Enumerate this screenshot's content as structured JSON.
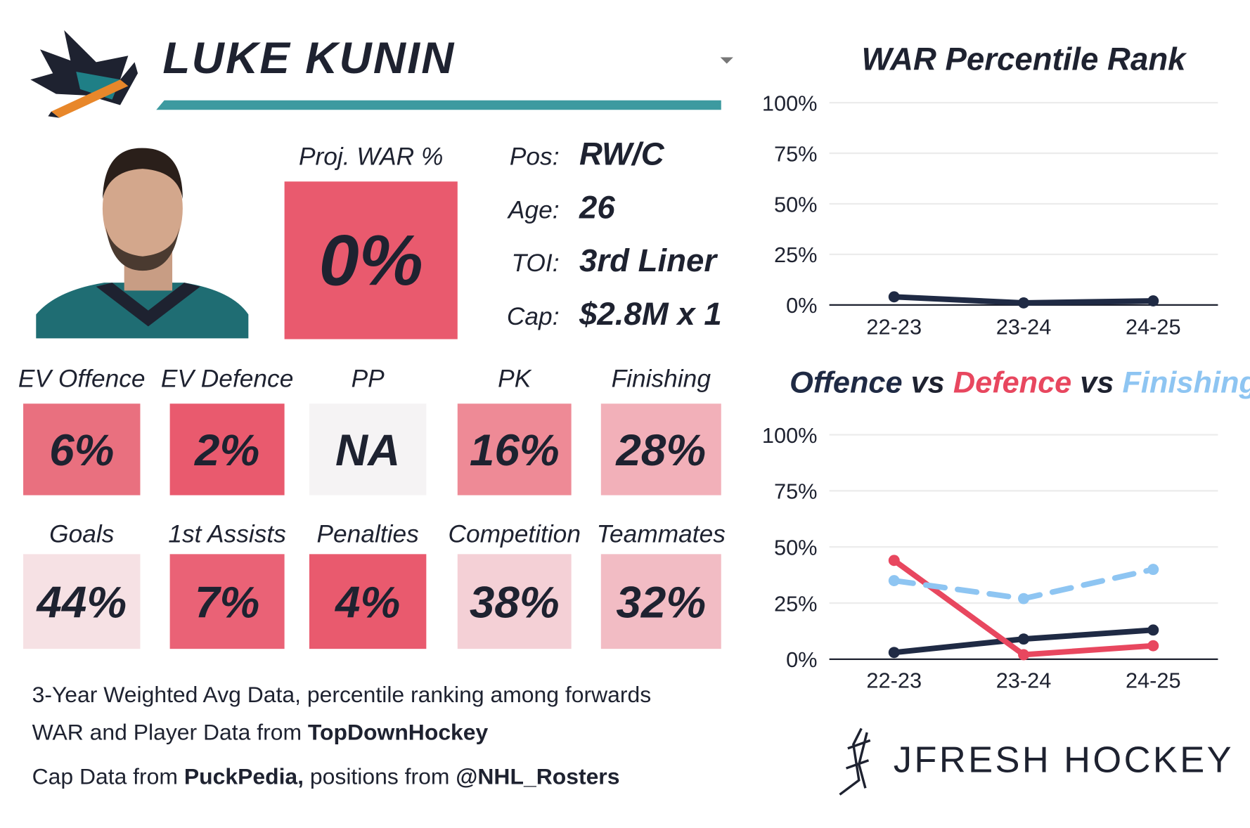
{
  "header": {
    "name": "LUKE KUNIN",
    "accent_color": "#3d9aa0"
  },
  "projection": {
    "label": "Proj. WAR %",
    "value": "0%",
    "color": "#e95a6e"
  },
  "info": [
    {
      "label": "Pos:",
      "value": "RW/C"
    },
    {
      "label": "Age:",
      "value": "26"
    },
    {
      "label": "TOI:",
      "value": "3rd Liner"
    },
    {
      "label": "Cap:",
      "value": "$2.8M x 1"
    }
  ],
  "stats": [
    [
      {
        "label": "EV Offence",
        "value": "6%",
        "color": "#e9707f"
      },
      {
        "label": "EV Defence",
        "value": "2%",
        "color": "#e95a6e"
      },
      {
        "label": "PP",
        "value": "NA",
        "color": "#f5f3f4"
      },
      {
        "label": "PK",
        "value": "16%",
        "color": "#ee8a96"
      },
      {
        "label": "Finishing",
        "value": "28%",
        "color": "#f2b0b9"
      }
    ],
    [
      {
        "label": "Goals",
        "value": "44%",
        "color": "#f6e1e4"
      },
      {
        "label": "1st Assists",
        "value": "7%",
        "color": "#ea6276"
      },
      {
        "label": "Penalties",
        "value": "4%",
        "color": "#e95a6e"
      },
      {
        "label": "Competition",
        "value": "38%",
        "color": "#f4d0d6"
      },
      {
        "label": "Teammates",
        "value": "32%",
        "color": "#f2bcc4"
      }
    ]
  ],
  "footer": [
    [
      {
        "text": "3-Year Weighted Avg Data, percentile ranking among forwards",
        "bold": false
      }
    ],
    [
      {
        "text": "WAR and Player Data from ",
        "bold": false
      },
      {
        "text": "TopDownHockey",
        "bold": true
      }
    ],
    [
      {
        "text": "Cap Data from ",
        "bold": false
      },
      {
        "text": "PuckPedia,",
        "bold": true
      },
      {
        "text": " positions from ",
        "bold": false
      },
      {
        "text": "@NHL_Rosters",
        "bold": true
      }
    ]
  ],
  "brand": "JFRESH HOCKEY",
  "chart_data": [
    {
      "type": "line",
      "title": "WAR Percentile Rank",
      "categories": [
        "22-23",
        "23-24",
        "24-25"
      ],
      "series": [
        {
          "color": "#1f2a44",
          "values": [
            4,
            1,
            2
          ]
        }
      ],
      "ylim": [
        0,
        100
      ],
      "yticks": [
        {
          "value": 0,
          "label": "0%"
        },
        {
          "value": 25,
          "label": "25%"
        },
        {
          "value": 50,
          "label": "50%"
        },
        {
          "value": 75,
          "label": "75%"
        },
        {
          "value": 100,
          "label": "100%"
        }
      ],
      "grid": true
    },
    {
      "type": "line",
      "title_joiner": "vs",
      "categories": [
        "22-23",
        "23-24",
        "24-25"
      ],
      "series": [
        {
          "name": "Offence",
          "color": "#1f2a44",
          "values": [
            3,
            9,
            13
          ]
        },
        {
          "name": "Defence",
          "color": "#e8475f",
          "values": [
            44,
            2,
            6
          ]
        },
        {
          "name": "Finishing",
          "color": "#8ec5f2",
          "values": [
            35,
            27,
            40
          ],
          "dashed": true
        }
      ],
      "ylim": [
        0,
        100
      ],
      "yticks": [
        {
          "value": 0,
          "label": "0%"
        },
        {
          "value": 25,
          "label": "25%"
        },
        {
          "value": 50,
          "label": "50%"
        },
        {
          "value": 75,
          "label": "75%"
        },
        {
          "value": 100,
          "label": "100%"
        }
      ],
      "grid": true
    }
  ]
}
